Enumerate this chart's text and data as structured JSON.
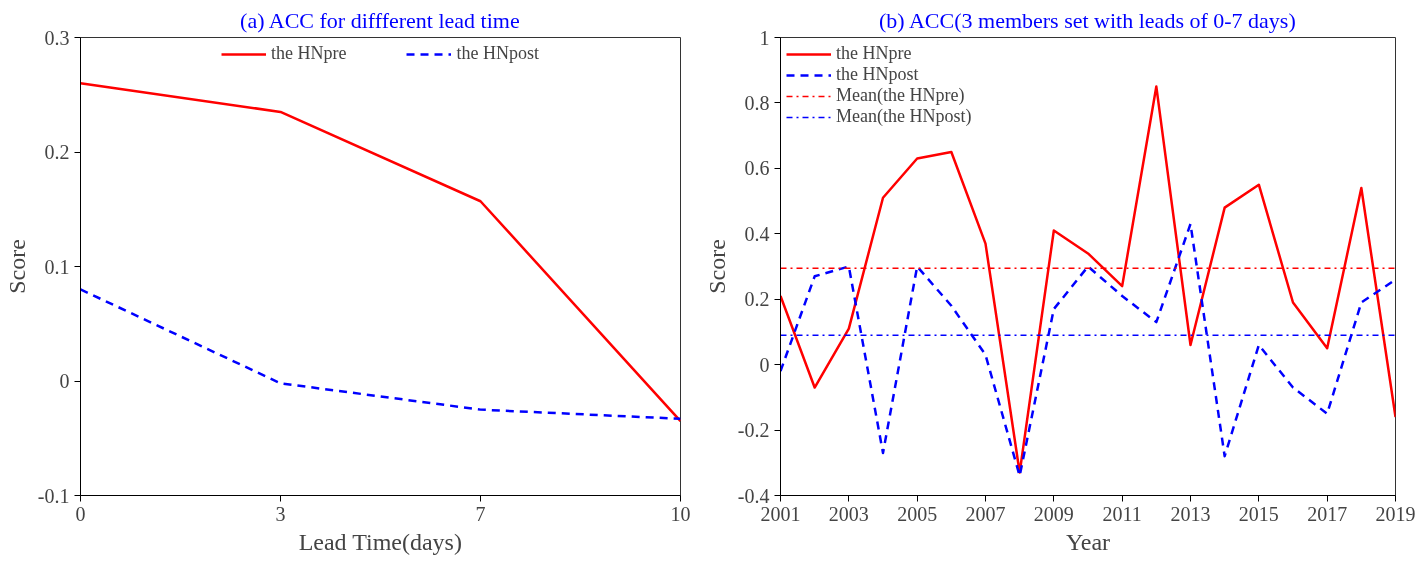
{
  "chart_data": [
    {
      "type": "line",
      "title": "(a) ACC for diffferent lead time",
      "xlabel": "Lead Time(days)",
      "ylabel": "Score",
      "categories": [
        "0",
        "3",
        "7",
        "10"
      ],
      "ylim": [
        -0.1,
        0.3
      ],
      "yticks": [
        -0.1,
        0,
        0.1,
        0.2,
        0.3
      ],
      "grid": false,
      "legend": "top",
      "series": [
        {
          "name": "the HNpre",
          "color": "#ff0000",
          "line_style": "solid",
          "values": [
            0.26,
            0.235,
            0.157,
            -0.035
          ]
        },
        {
          "name": "the HNpost",
          "color": "#0000ff",
          "line_style": "dashed",
          "values": [
            0.08,
            -0.002,
            -0.025,
            -0.033
          ]
        }
      ]
    },
    {
      "type": "line",
      "title": "(b) ACC(3 members set with leads of 0-7 days)",
      "xlabel": "Year",
      "ylabel": "Score",
      "x": [
        2001,
        2002,
        2003,
        2004,
        2005,
        2006,
        2007,
        2008,
        2009,
        2010,
        2011,
        2012,
        2013,
        2014,
        2015,
        2016,
        2017,
        2018,
        2019
      ],
      "xlim": [
        2001,
        2019
      ],
      "xticks": [
        2001,
        2003,
        2005,
        2007,
        2009,
        2011,
        2013,
        2015,
        2017,
        2019
      ],
      "ylim": [
        -0.4,
        1
      ],
      "yticks": [
        -0.4,
        -0.2,
        0,
        0.2,
        0.4,
        0.6,
        0.8,
        1
      ],
      "grid": false,
      "legend": "top left",
      "series": [
        {
          "name": "the HNpre",
          "color": "#ff0000",
          "line_style": "solid",
          "values": [
            0.21,
            -0.07,
            0.11,
            0.51,
            0.63,
            0.65,
            0.37,
            -0.33,
            0.41,
            0.34,
            0.24,
            0.85,
            0.06,
            0.48,
            0.55,
            0.19,
            0.05,
            0.54,
            -0.16
          ]
        },
        {
          "name": "the HNpost",
          "color": "#0000ff",
          "line_style": "dashed",
          "values": [
            -0.02,
            0.27,
            0.3,
            -0.27,
            0.3,
            0.18,
            0.03,
            -0.34,
            0.17,
            0.3,
            0.21,
            0.13,
            0.43,
            -0.28,
            0.06,
            -0.07,
            -0.15,
            0.19,
            0.26
          ]
        }
      ],
      "ref_lines": [
        {
          "axis": "y",
          "value": 0.295,
          "label": "Mean(the HNpre)",
          "color": "#ff0000",
          "line_style": "dashdot"
        },
        {
          "axis": "y",
          "value": 0.09,
          "label": "Mean(the HNpost)",
          "color": "#0000ff",
          "line_style": "dashdot"
        }
      ]
    }
  ]
}
